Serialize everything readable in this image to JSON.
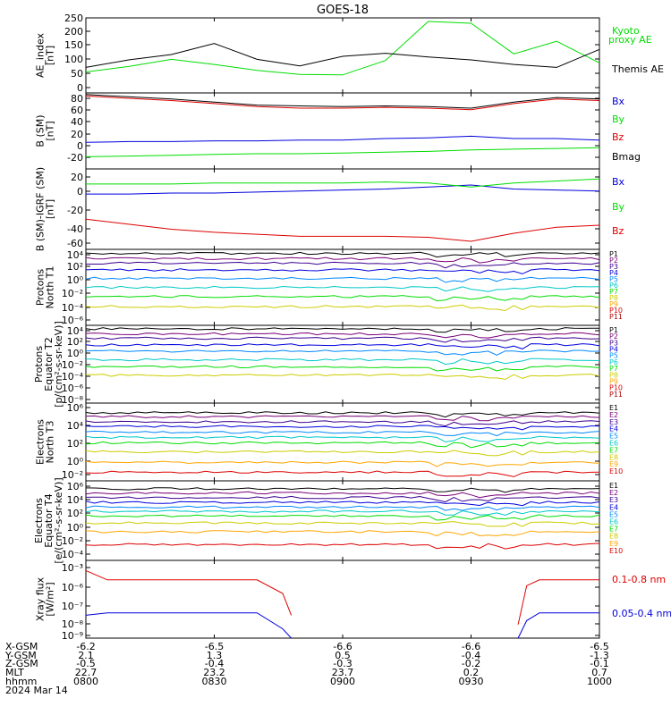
{
  "title": "GOES-18",
  "colors": {
    "black": "#000000",
    "blue": "#0000dd",
    "green": "#00dd00",
    "red": "#dd0000"
  },
  "panels": [
    {
      "id": "ae",
      "ylabel": [
        "AE_index",
        "[nT]"
      ],
      "ticks": [
        "250",
        "200",
        "150",
        "100",
        "50",
        "0"
      ],
      "legend": [
        {
          "text": "Kyoto",
          "color": "#00dd00"
        },
        {
          "text": "proxy AE",
          "color": "#00dd00"
        },
        {
          "text": "Themis AE",
          "color": "#000000"
        }
      ]
    },
    {
      "id": "bsm",
      "ylabel": [
        "B (SM)",
        "[nT]"
      ],
      "ticks": [
        "80",
        "60",
        "40",
        "20",
        "0",
        "-20"
      ],
      "legend": [
        {
          "text": "Bx",
          "color": "#0000dd"
        },
        {
          "text": "By",
          "color": "#00dd00"
        },
        {
          "text": "Bz",
          "color": "#dd0000"
        },
        {
          "text": "Bmag",
          "color": "#000000"
        }
      ]
    },
    {
      "id": "bigrf",
      "ylabel": [
        "B (SM)-IGRF (SM)",
        "[nT]"
      ],
      "ticks": [
        "20",
        "0",
        "-20",
        "-40",
        "-60"
      ],
      "legend": [
        {
          "text": "Bx",
          "color": "#0000dd"
        },
        {
          "text": "By",
          "color": "#00dd00"
        },
        {
          "text": "Bz",
          "color": "#dd0000"
        }
      ]
    },
    {
      "id": "pnt1",
      "ylabel": [
        "Protons",
        "North T1"
      ],
      "ticks": [
        "10⁴",
        "10²",
        "10⁰",
        "10⁻²",
        "10⁻⁴",
        "10⁻⁶"
      ],
      "legend": [
        "P1",
        "P2",
        "P3",
        "P4",
        "P5",
        "P6",
        "P7",
        "P8",
        "P9",
        "P10",
        "P11"
      ]
    },
    {
      "id": "pet2",
      "ylabel": [
        "Protons",
        "Equator T2",
        "[p/(cm²-s-sr-keV)]"
      ],
      "ticks": [
        "10⁴",
        "10²",
        "10⁰",
        "10⁻²",
        "10⁻⁴",
        "10⁻⁶",
        "10⁻⁸"
      ],
      "legend": [
        "P1",
        "P2",
        "P3",
        "P4",
        "P5",
        "P6",
        "P7",
        "P8",
        "P9",
        "P10",
        "P11"
      ]
    },
    {
      "id": "ent3",
      "ylabel": [
        "Electrons",
        "North T3"
      ],
      "ticks": [
        "10⁶",
        "10⁴",
        "10²",
        "10⁰",
        "10⁻²"
      ],
      "legend": [
        "E1",
        "E2",
        "E3",
        "E4",
        "E5",
        "E6",
        "E7",
        "E8",
        "E9",
        "E10"
      ]
    },
    {
      "id": "eet4",
      "ylabel": [
        "Electrons",
        "Equator T4",
        "[e/(cm²-s-sr-keV)]"
      ],
      "ticks": [
        "10⁶",
        "10⁴",
        "10²",
        "10⁰",
        "10⁻²",
        "10⁻⁴"
      ],
      "legend": [
        "E1",
        "E2",
        "E3",
        "E4",
        "E5",
        "E6",
        "E7",
        "E8",
        "E9",
        "E10"
      ]
    },
    {
      "id": "xray",
      "ylabel": [
        "Xray flux",
        "[W/m²]"
      ],
      "ticks": [
        "10⁻³",
        "10⁻⁶",
        "10⁻⁷",
        "10⁻⁸",
        "10⁻⁹"
      ],
      "legend": [
        {
          "text": "0.1-0.8 nm",
          "color": "#dd0000"
        },
        {
          "text": "0.05-0.4 nm",
          "color": "#0000dd"
        }
      ]
    }
  ],
  "footer": {
    "row_labels": [
      "X-GSM",
      "Y-GSM",
      "Z-GSM",
      "MLT",
      "hhmm",
      "2024 Mar 14"
    ],
    "columns": [
      [
        "-6.2",
        "2.1",
        "-0.5",
        "22.7",
        "0800"
      ],
      [
        "-6.5",
        "1.3",
        "-0.4",
        "23.2",
        "0830"
      ],
      [
        "-6.6",
        "0.5",
        "-0.3",
        "23.7",
        "0900"
      ],
      [
        "-6.6",
        "-0.4",
        "-0.2",
        "0.2",
        "0930"
      ],
      [
        "-6.5",
        "-1.3",
        "-0.1",
        "0.7",
        "1000"
      ]
    ]
  },
  "chart_data": [
    {
      "type": "line",
      "ylabel": "AE_index [nT]",
      "ylim": [
        0,
        250
      ],
      "x": [
        "0800",
        "0810",
        "0820",
        "0830",
        "0840",
        "0850",
        "0900",
        "0910",
        "0920",
        "0930",
        "0940",
        "0950",
        "1000"
      ],
      "series": [
        {
          "name": "Kyoto proxy AE",
          "color": "#00dd00",
          "values": [
            70,
            88,
            112,
            95,
            75,
            62,
            60,
            108,
            238,
            232,
            130,
            172,
            100
          ]
        },
        {
          "name": "Themis AE",
          "color": "#000000",
          "values": [
            85,
            110,
            128,
            165,
            112,
            90,
            122,
            132,
            120,
            110,
            95,
            85,
            145
          ]
        }
      ]
    },
    {
      "type": "line",
      "ylabel": "B (SM) [nT]",
      "ylim": [
        -20,
        80
      ],
      "x": [
        "0800",
        "0810",
        "0820",
        "0830",
        "0840",
        "0850",
        "0900",
        "0910",
        "0920",
        "0930",
        "0940",
        "0950",
        "1000"
      ],
      "series": [
        {
          "name": "Bx",
          "color": "#0000dd",
          "values": [
            15,
            16,
            16,
            17,
            17,
            18,
            18,
            20,
            21,
            23,
            20,
            20,
            18
          ]
        },
        {
          "name": "By",
          "color": "#00dd00",
          "values": [
            -4,
            -3,
            -2,
            -1,
            0,
            0,
            1,
            2,
            3,
            5,
            6,
            7,
            8
          ]
        },
        {
          "name": "Bz",
          "color": "#dd0000",
          "values": [
            76,
            73,
            70,
            66,
            62,
            60,
            60,
            61,
            60,
            58,
            66,
            72,
            70
          ]
        },
        {
          "name": "Bmag",
          "color": "#000000",
          "values": [
            78,
            75,
            72,
            68,
            64,
            63,
            62,
            63,
            62,
            60,
            68,
            74,
            72
          ]
        }
      ]
    },
    {
      "type": "line",
      "ylabel": "B (SM)-IGRF (SM) [nT]",
      "ylim": [
        -60,
        20
      ],
      "x": [
        "0800",
        "0810",
        "0820",
        "0830",
        "0840",
        "0850",
        "0900",
        "0910",
        "0920",
        "0930",
        "0940",
        "0950",
        "1000"
      ],
      "series": [
        {
          "name": "Bx",
          "color": "#0000dd",
          "values": [
            -5,
            -5,
            -4,
            -4,
            -3,
            -2,
            -1,
            0,
            2,
            4,
            0,
            -1,
            -2
          ]
        },
        {
          "name": "By",
          "color": "#00dd00",
          "values": [
            5,
            5,
            5,
            6,
            6,
            6,
            6,
            7,
            6,
            2,
            6,
            8,
            10
          ]
        },
        {
          "name": "Bz",
          "color": "#dd0000",
          "values": [
            -30,
            -35,
            -40,
            -43,
            -45,
            -47,
            -47,
            -47,
            -48,
            -52,
            -44,
            -38,
            -36
          ]
        }
      ]
    },
    {
      "type": "line",
      "ylabel": "Protons North T1",
      "log_y": true,
      "ylim": [
        1e-06,
        10000.0
      ],
      "x_range": [
        "0800",
        "1000"
      ],
      "channel_levels": [
        {
          "name": "P1",
          "color": "#000000",
          "value": 3000
        },
        {
          "name": "P2",
          "color": "#7a0078",
          "value": 600
        },
        {
          "name": "P3",
          "color": "#3c0090",
          "value": 150
        },
        {
          "name": "P4",
          "color": "#0000dd",
          "value": 20
        },
        {
          "name": "P5",
          "color": "#0088ff",
          "value": 1.5
        },
        {
          "name": "P6",
          "color": "#00c8c8",
          "value": 0.1
        },
        {
          "name": "P7",
          "color": "#00dd00",
          "value": 0.006
        },
        {
          "name": "P8",
          "color": "#cccc00",
          "value": 0.0003
        },
        {
          "name": "P9",
          "color": "#ffa500",
          "value": null
        },
        {
          "name": "P10",
          "color": "#dd0000",
          "value": null
        },
        {
          "name": "P11",
          "color": "#aa0000",
          "value": null
        }
      ]
    },
    {
      "type": "line",
      "ylabel": "Protons Equator T2 [p/(cm²-s-sr-keV)]",
      "log_y": true,
      "ylim": [
        1e-08,
        10000.0
      ],
      "x_range": [
        "0800",
        "1000"
      ],
      "channel_levels": [
        {
          "name": "P1",
          "color": "#000000",
          "value": 3000
        },
        {
          "name": "P2",
          "color": "#7a0078",
          "value": 500
        },
        {
          "name": "P3",
          "color": "#3c0090",
          "value": 100
        },
        {
          "name": "P4",
          "color": "#0000dd",
          "value": 10
        },
        {
          "name": "P5",
          "color": "#0088ff",
          "value": 1
        },
        {
          "name": "P6",
          "color": "#00c8c8",
          "value": 0.05
        },
        {
          "name": "P7",
          "color": "#00dd00",
          "value": 0.004
        },
        {
          "name": "P8",
          "color": "#cccc00",
          "value": 0.0002
        },
        {
          "name": "P9",
          "color": "#ffa500",
          "value": null
        },
        {
          "name": "P10",
          "color": "#dd0000",
          "value": null
        },
        {
          "name": "P11",
          "color": "#aa0000",
          "value": null
        }
      ]
    },
    {
      "type": "line",
      "ylabel": "Electrons North T3",
      "log_y": true,
      "ylim": [
        0.01,
        1000000.0
      ],
      "x_range": [
        "0800",
        "1000"
      ],
      "channel_levels": [
        {
          "name": "E1",
          "color": "#000000",
          "value": 100000
        },
        {
          "name": "E2",
          "color": "#7a0078",
          "value": 40000
        },
        {
          "name": "E3",
          "color": "#3c0090",
          "value": 12000
        },
        {
          "name": "E4",
          "color": "#0000dd",
          "value": 4000
        },
        {
          "name": "E5",
          "color": "#0088ff",
          "value": 1000
        },
        {
          "name": "E6",
          "color": "#00c8c8",
          "value": 300
        },
        {
          "name": "E7",
          "color": "#00dd00",
          "value": 80
        },
        {
          "name": "E8",
          "color": "#cccc00",
          "value": 10
        },
        {
          "name": "E9",
          "color": "#ffa500",
          "value": 0.8
        },
        {
          "name": "E10",
          "color": "#dd0000",
          "value": 0.08
        }
      ]
    },
    {
      "type": "line",
      "ylabel": "Electrons Equator T4 [e/(cm²-s-sr-keV)]",
      "log_y": true,
      "ylim": [
        0.0001,
        1000000.0
      ],
      "x_range": [
        "0800",
        "1000"
      ],
      "channel_levels": [
        {
          "name": "E1",
          "color": "#000000",
          "value": 100000
        },
        {
          "name": "E2",
          "color": "#7a0078",
          "value": 30000
        },
        {
          "name": "E3",
          "color": "#3c0090",
          "value": 8000
        },
        {
          "name": "E4",
          "color": "#0000dd",
          "value": 2000
        },
        {
          "name": "E5",
          "color": "#0088ff",
          "value": 500
        },
        {
          "name": "E6",
          "color": "#00c8c8",
          "value": 150
        },
        {
          "name": "E7",
          "color": "#00dd00",
          "value": 40
        },
        {
          "name": "E8",
          "color": "#cccc00",
          "value": 5
        },
        {
          "name": "E9",
          "color": "#ffa500",
          "value": 0.4
        },
        {
          "name": "E10",
          "color": "#dd0000",
          "value": 0.01
        }
      ]
    },
    {
      "type": "line",
      "ylabel": "Xray flux [W/m²]",
      "log_y": true,
      "ylim": [
        1e-09,
        1e-05
      ],
      "x": [
        "0800",
        "0805",
        "0820",
        "0840",
        "0846",
        "0848",
        "0850",
        "0941",
        "0943",
        "0946",
        "1000"
      ],
      "series": [
        {
          "name": "0.1-0.8 nm",
          "color": "#dd0000",
          "values": [
            3e-06,
            1e-06,
            1e-06,
            1e-06,
            2e-07,
            1.5e-08,
            null,
            5e-09,
            5e-07,
            1e-06,
            1e-06
          ]
        },
        {
          "name": "0.05-0.4 nm",
          "color": "#0000dd",
          "values": [
            1.5e-08,
            2e-08,
            2e-08,
            2e-08,
            3e-09,
            1e-09,
            null,
            1e-09,
            8e-09,
            2e-08,
            2e-08
          ]
        }
      ]
    }
  ]
}
